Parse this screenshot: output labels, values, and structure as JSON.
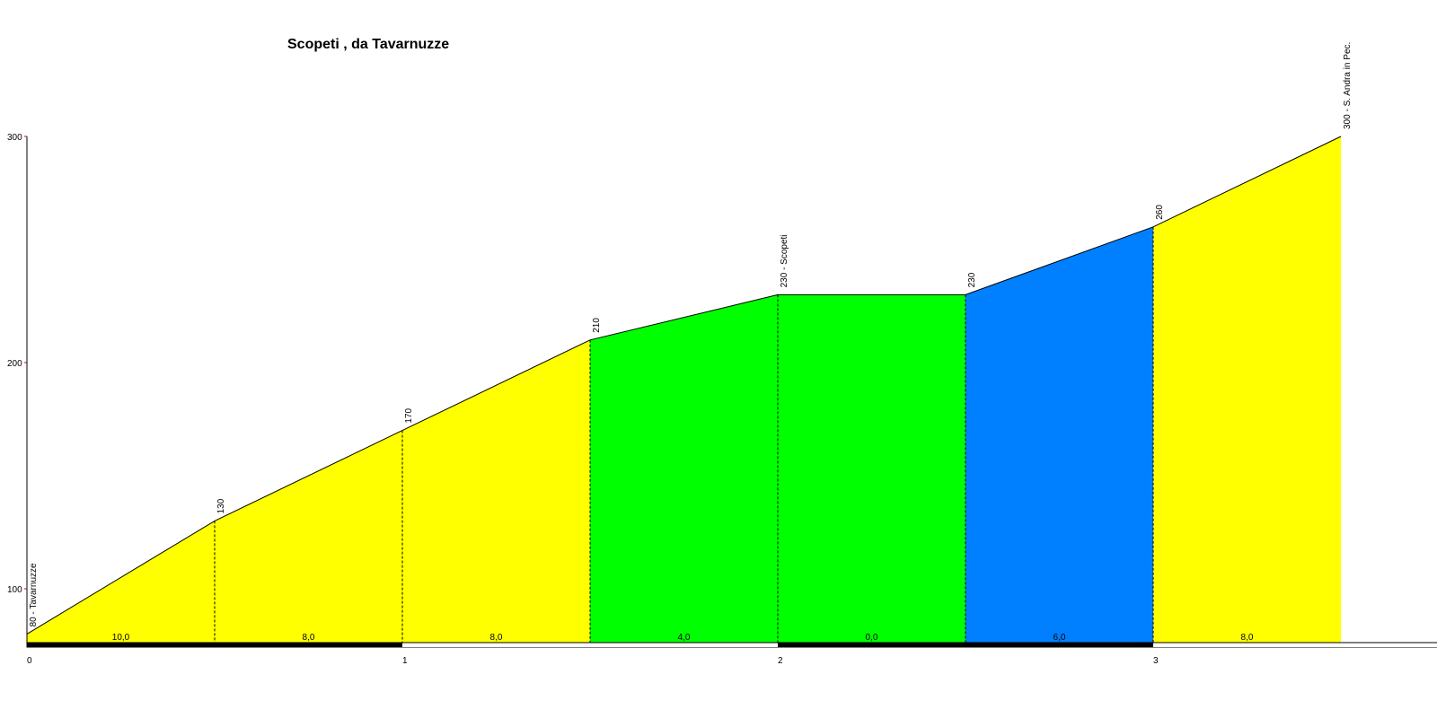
{
  "chart_data": {
    "type": "area",
    "title": "Scopeti , da Tavarnuzze",
    "xlabel": "",
    "ylabel": "",
    "xlim": [
      0,
      3.7
    ],
    "ylim": [
      80,
      300
    ],
    "x_ticks": [
      0,
      1,
      2,
      3
    ],
    "x_tick_labels": [
      "0",
      "1",
      "2",
      "3"
    ],
    "y_ticks": [
      100,
      200,
      300
    ],
    "y_tick_labels": [
      "100",
      "200",
      "300"
    ],
    "points": [
      {
        "x": 0.0,
        "y": 80,
        "label": "80 - Tavarnuzze"
      },
      {
        "x": 0.5,
        "y": 130,
        "label": "130"
      },
      {
        "x": 1.0,
        "y": 170,
        "label": "170"
      },
      {
        "x": 1.5,
        "y": 210,
        "label": "210"
      },
      {
        "x": 2.0,
        "y": 230,
        "label": "230 - Scopeti"
      },
      {
        "x": 2.5,
        "y": 230,
        "label": "230"
      },
      {
        "x": 3.0,
        "y": 260,
        "label": "260"
      },
      {
        "x": 3.5,
        "y": 300,
        "label": "300 - S. Andra in Pec."
      }
    ],
    "segments": [
      {
        "from": 0.0,
        "to": 0.5,
        "gradient": "10,0",
        "color": "#ffff00"
      },
      {
        "from": 0.5,
        "to": 1.0,
        "gradient": "8,0",
        "color": "#ffff00"
      },
      {
        "from": 1.0,
        "to": 1.5,
        "gradient": "8,0",
        "color": "#ffff00"
      },
      {
        "from": 1.5,
        "to": 2.0,
        "gradient": "4,0",
        "color": "#00ff00"
      },
      {
        "from": 2.0,
        "to": 2.5,
        "gradient": "0,0",
        "color": "#00ff00"
      },
      {
        "from": 2.5,
        "to": 3.0,
        "gradient": "6,0",
        "color": "#0080ff"
      },
      {
        "from": 3.0,
        "to": 3.5,
        "gradient": "8,0",
        "color": "#ffff00"
      }
    ],
    "km_bar_colors": [
      "#000000",
      "#ffffff"
    ],
    "grid": false,
    "legend": "none"
  }
}
